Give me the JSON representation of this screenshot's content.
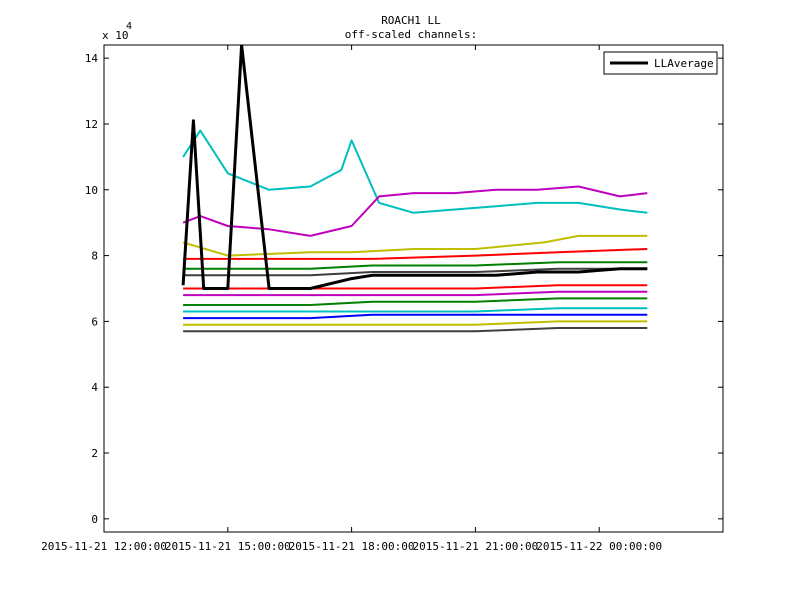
{
  "chart_data": {
    "type": "line",
    "title": "ROACH1 LL",
    "subtitle": "off-scaled channels:",
    "xlabel": "",
    "ylabel": "",
    "y_exponent_label": "x 10",
    "y_exponent_power": "4",
    "ylim": [
      -0.4,
      14.4
    ],
    "xlim": [
      "2015-11-21 12:00:00",
      "2015-11-22 03:00:00"
    ],
    "xticks": [
      {
        "value": "2015-11-21 12:00:00",
        "label": "2015-11-21 12:00:00"
      },
      {
        "value": "2015-11-21 15:00:00",
        "label": "2015-11-21 15:00:00"
      },
      {
        "value": "2015-11-21 18:00:00",
        "label": "2015-11-21 18:00:00"
      },
      {
        "value": "2015-11-21 21:00:00",
        "label": "2015-11-21 21:00:00"
      },
      {
        "value": "2015-11-22 00:00:00",
        "label": "2015-11-22 00:00:00"
      }
    ],
    "yticks": [
      {
        "value": 0,
        "label": "0"
      },
      {
        "value": 2,
        "label": "2"
      },
      {
        "value": 4,
        "label": "4"
      },
      {
        "value": 6,
        "label": "6"
      },
      {
        "value": 8,
        "label": "8"
      },
      {
        "value": 10,
        "label": "10"
      },
      {
        "value": 12,
        "label": "12"
      },
      {
        "value": 14,
        "label": "14"
      }
    ],
    "legend": {
      "placement": "top-right",
      "entries": [
        "LLAverage"
      ]
    },
    "grid": false,
    "series": [
      {
        "color": "#00bfbf",
        "x": [
          "2015-11-21 13:55:00",
          "2015-11-21 14:20:00",
          "2015-11-21 15:00:00",
          "2015-11-21 16:00:00",
          "2015-11-21 17:00:00",
          "2015-11-21 17:45:00",
          "2015-11-21 18:00:00",
          "2015-11-21 18:40:00",
          "2015-11-21 19:30:00",
          "2015-11-21 20:30:00",
          "2015-11-21 21:30:00",
          "2015-11-21 22:30:00",
          "2015-11-21 23:30:00",
          "2015-11-22 00:30:00",
          "2015-11-22 01:10:00"
        ],
        "values": [
          11.0,
          11.8,
          10.5,
          10.0,
          10.1,
          10.6,
          11.5,
          9.6,
          9.3,
          9.4,
          9.5,
          9.6,
          9.6,
          9.4,
          9.3
        ]
      },
      {
        "color": "#bf00bf",
        "x": [
          "2015-11-21 13:55:00",
          "2015-11-21 14:20:00",
          "2015-11-21 15:00:00",
          "2015-11-21 16:00:00",
          "2015-11-21 17:00:00",
          "2015-11-21 18:00:00",
          "2015-11-21 18:40:00",
          "2015-11-21 19:30:00",
          "2015-11-21 20:30:00",
          "2015-11-21 21:30:00",
          "2015-11-21 22:30:00",
          "2015-11-21 23:30:00",
          "2015-11-22 00:30:00",
          "2015-11-22 01:10:00"
        ],
        "values": [
          9.0,
          9.2,
          8.9,
          8.8,
          8.6,
          8.9,
          9.8,
          9.9,
          9.9,
          10.0,
          10.0,
          10.1,
          9.8,
          9.9
        ]
      },
      {
        "color": "#bfbf00",
        "x": [
          "2015-11-21 13:55:00",
          "2015-11-21 15:00:00",
          "2015-11-21 17:00:00",
          "2015-11-21 18:00:00",
          "2015-11-21 19:30:00",
          "2015-11-21 21:00:00",
          "2015-11-21 22:40:00",
          "2015-11-21 23:30:00",
          "2015-11-22 01:10:00"
        ],
        "values": [
          8.4,
          8.0,
          8.1,
          8.1,
          8.2,
          8.2,
          8.4,
          8.6,
          8.6
        ]
      },
      {
        "color": "#ff0000",
        "x": [
          "2015-11-21 13:55:00",
          "2015-11-21 17:00:00",
          "2015-11-21 18:30:00",
          "2015-11-21 21:00:00",
          "2015-11-21 23:00:00",
          "2015-11-22 01:10:00"
        ],
        "values": [
          7.9,
          7.9,
          7.9,
          8.0,
          8.1,
          8.2
        ]
      },
      {
        "color": "#007f00",
        "x": [
          "2015-11-21 13:55:00",
          "2015-11-21 17:00:00",
          "2015-11-21 18:30:00",
          "2015-11-21 21:00:00",
          "2015-11-21 23:00:00",
          "2015-11-22 01:10:00"
        ],
        "values": [
          7.6,
          7.6,
          7.7,
          7.7,
          7.8,
          7.8
        ]
      },
      {
        "color": "#3f3f3f",
        "x": [
          "2015-11-21 13:55:00",
          "2015-11-21 17:00:00",
          "2015-11-21 18:30:00",
          "2015-11-21 21:00:00",
          "2015-11-21 23:00:00",
          "2015-11-22 01:10:00"
        ],
        "values": [
          7.4,
          7.4,
          7.5,
          7.5,
          7.6,
          7.6
        ]
      },
      {
        "color": "#ff0000",
        "x": [
          "2015-11-21 13:55:00",
          "2015-11-21 17:00:00",
          "2015-11-21 18:30:00",
          "2015-11-21 21:00:00",
          "2015-11-21 23:00:00",
          "2015-11-22 01:10:00"
        ],
        "values": [
          7.0,
          7.0,
          7.0,
          7.0,
          7.1,
          7.1
        ]
      },
      {
        "color": "#bf00bf",
        "x": [
          "2015-11-21 13:55:00",
          "2015-11-21 17:00:00",
          "2015-11-21 18:30:00",
          "2015-11-21 21:00:00",
          "2015-11-21 23:00:00",
          "2015-11-22 01:10:00"
        ],
        "values": [
          6.8,
          6.8,
          6.8,
          6.8,
          6.9,
          6.9
        ]
      },
      {
        "color": "#007f00",
        "x": [
          "2015-11-21 13:55:00",
          "2015-11-21 17:00:00",
          "2015-11-21 18:30:00",
          "2015-11-21 21:00:00",
          "2015-11-21 23:00:00",
          "2015-11-22 01:10:00"
        ],
        "values": [
          6.5,
          6.5,
          6.6,
          6.6,
          6.7,
          6.7
        ]
      },
      {
        "color": "#00bfbf",
        "x": [
          "2015-11-21 13:55:00",
          "2015-11-21 17:00:00",
          "2015-11-21 18:30:00",
          "2015-11-21 21:00:00",
          "2015-11-21 23:00:00",
          "2015-11-22 01:10:00"
        ],
        "values": [
          6.3,
          6.3,
          6.3,
          6.3,
          6.4,
          6.4
        ]
      },
      {
        "color": "#0000ff",
        "x": [
          "2015-11-21 13:55:00",
          "2015-11-21 17:00:00",
          "2015-11-21 18:30:00",
          "2015-11-21 21:00:00",
          "2015-11-21 23:00:00",
          "2015-11-22 01:10:00"
        ],
        "values": [
          6.1,
          6.1,
          6.2,
          6.2,
          6.2,
          6.2
        ]
      },
      {
        "color": "#bfbf00",
        "x": [
          "2015-11-21 13:55:00",
          "2015-11-21 17:00:00",
          "2015-11-21 18:30:00",
          "2015-11-21 21:00:00",
          "2015-11-21 23:00:00",
          "2015-11-22 01:10:00"
        ],
        "values": [
          5.9,
          5.9,
          5.9,
          5.9,
          6.0,
          6.0
        ]
      },
      {
        "color": "#3f3f3f",
        "x": [
          "2015-11-21 13:55:00",
          "2015-11-21 17:00:00",
          "2015-11-21 18:30:00",
          "2015-11-21 21:00:00",
          "2015-11-21 23:00:00",
          "2015-11-22 01:10:00"
        ],
        "values": [
          5.7,
          5.7,
          5.7,
          5.7,
          5.8,
          5.8
        ]
      },
      {
        "name": "LLAverage",
        "color": "#000000",
        "width": 3,
        "x": [
          "2015-11-21 13:55:00",
          "2015-11-21 14:10:00",
          "2015-11-21 14:25:00",
          "2015-11-21 15:00:00",
          "2015-11-21 15:20:00",
          "2015-11-21 16:00:00",
          "2015-11-21 17:00:00",
          "2015-11-21 18:00:00",
          "2015-11-21 18:30:00",
          "2015-11-21 19:30:00",
          "2015-11-21 20:30:00",
          "2015-11-21 21:30:00",
          "2015-11-21 22:30:00",
          "2015-11-21 23:30:00",
          "2015-11-22 00:30:00",
          "2015-11-22 01:10:00"
        ],
        "values": [
          7.1,
          12.1,
          7.0,
          7.0,
          14.4,
          7.0,
          7.0,
          7.3,
          7.4,
          7.4,
          7.4,
          7.4,
          7.5,
          7.5,
          7.6,
          7.6
        ]
      }
    ]
  }
}
